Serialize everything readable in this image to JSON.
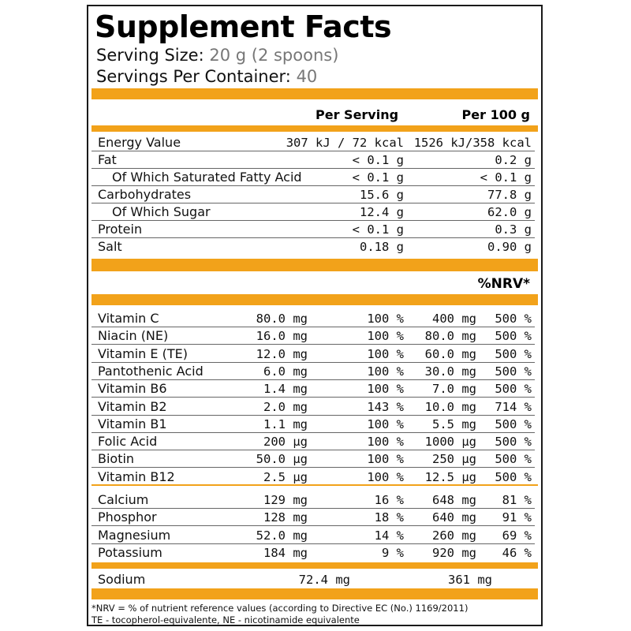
{
  "title": "Supplement Facts",
  "serving_size": {
    "label": "Serving Size:",
    "value": "20 g (2 spoons)"
  },
  "servings_per_container": {
    "label": "Servings Per Container:",
    "value": "40"
  },
  "headers": {
    "per_serving": "Per Serving",
    "per_100g": "Per 100 g",
    "nrv": "%NRV*"
  },
  "macros": [
    {
      "name": "Energy Value",
      "per_serving": "307 kJ / 72 kcal",
      "per_100g": "1526 kJ/358 kcal",
      "indent": false
    },
    {
      "name": "Fat",
      "per_serving": "< 0.1 g",
      "per_100g": "0.2 g",
      "indent": false
    },
    {
      "name": "Of Which Saturated Fatty Acid",
      "per_serving": "< 0.1 g",
      "per_100g": "< 0.1 g",
      "indent": true
    },
    {
      "name": "Carbohydrates",
      "per_serving": "15.6 g",
      "per_100g": "77.8 g",
      "indent": false
    },
    {
      "name": "Of Which Sugar",
      "per_serving": "12.4 g",
      "per_100g": "62.0 g",
      "indent": true
    },
    {
      "name": "Protein",
      "per_serving": "< 0.1 g",
      "per_100g": "0.3 g",
      "indent": false
    },
    {
      "name": "Salt",
      "per_serving": "0.18 g",
      "per_100g": "0.90 g",
      "indent": false
    }
  ],
  "vitamins": [
    {
      "name": "Vitamin C",
      "per_serving": "80.0 mg",
      "nrv_serving": "100 %",
      "per_100g": "400 mg",
      "nrv_100g": "500 %"
    },
    {
      "name": "Niacin (NE)",
      "per_serving": "16.0 mg",
      "nrv_serving": "100 %",
      "per_100g": "80.0 mg",
      "nrv_100g": "500 %"
    },
    {
      "name": "Vitamin E (TE)",
      "per_serving": "12.0 mg",
      "nrv_serving": "100 %",
      "per_100g": "60.0 mg",
      "nrv_100g": "500 %"
    },
    {
      "name": "Pantothenic Acid",
      "per_serving": "6.0 mg",
      "nrv_serving": "100 %",
      "per_100g": "30.0 mg",
      "nrv_100g": "500 %"
    },
    {
      "name": "Vitamin B6",
      "per_serving": "1.4 mg",
      "nrv_serving": "100 %",
      "per_100g": "7.0 mg",
      "nrv_100g": "500 %"
    },
    {
      "name": "Vitamin B2",
      "per_serving": "2.0 mg",
      "nrv_serving": "143 %",
      "per_100g": "10.0 mg",
      "nrv_100g": "714 %"
    },
    {
      "name": "Vitamin B1",
      "per_serving": "1.1 mg",
      "nrv_serving": "100 %",
      "per_100g": "5.5 mg",
      "nrv_100g": "500 %"
    },
    {
      "name": "Folic Acid",
      "per_serving": "200 µg",
      "nrv_serving": "100 %",
      "per_100g": "1000 µg",
      "nrv_100g": "500 %"
    },
    {
      "name": "Biotin",
      "per_serving": "50.0 µg",
      "nrv_serving": "100 %",
      "per_100g": "250 µg",
      "nrv_100g": "500 %"
    },
    {
      "name": "Vitamin B12",
      "per_serving": "2.5 µg",
      "nrv_serving": "100 %",
      "per_100g": "12.5 µg",
      "nrv_100g": "500 %"
    }
  ],
  "minerals": [
    {
      "name": "Calcium",
      "per_serving": "129 mg",
      "nrv_serving": "16 %",
      "per_100g": "648 mg",
      "nrv_100g": "81 %"
    },
    {
      "name": "Phosphor",
      "per_serving": "128 mg",
      "nrv_serving": "18 %",
      "per_100g": "640 mg",
      "nrv_100g": "91 %"
    },
    {
      "name": "Magnesium",
      "per_serving": "52.0 mg",
      "nrv_serving": "14 %",
      "per_100g": "260 mg",
      "nrv_100g": "69 %"
    },
    {
      "name": "Potassium",
      "per_serving": "184 mg",
      "nrv_serving": "9 %",
      "per_100g": "920 mg",
      "nrv_100g": "46 %"
    }
  ],
  "sodium": {
    "name": "Sodium",
    "per_serving": "72.4 mg",
    "per_100g": "361 mg"
  },
  "footnotes": [
    "*NRV = % of nutrient reference values (according to Directive EC (No.) 1169/2011)",
    "TE - tocopherol-equivalente, NE - nicotinamide equivalente"
  ],
  "colors": {
    "accent": "#f2a21a",
    "border": "#1a1a1a",
    "muted_value": "#777777"
  }
}
